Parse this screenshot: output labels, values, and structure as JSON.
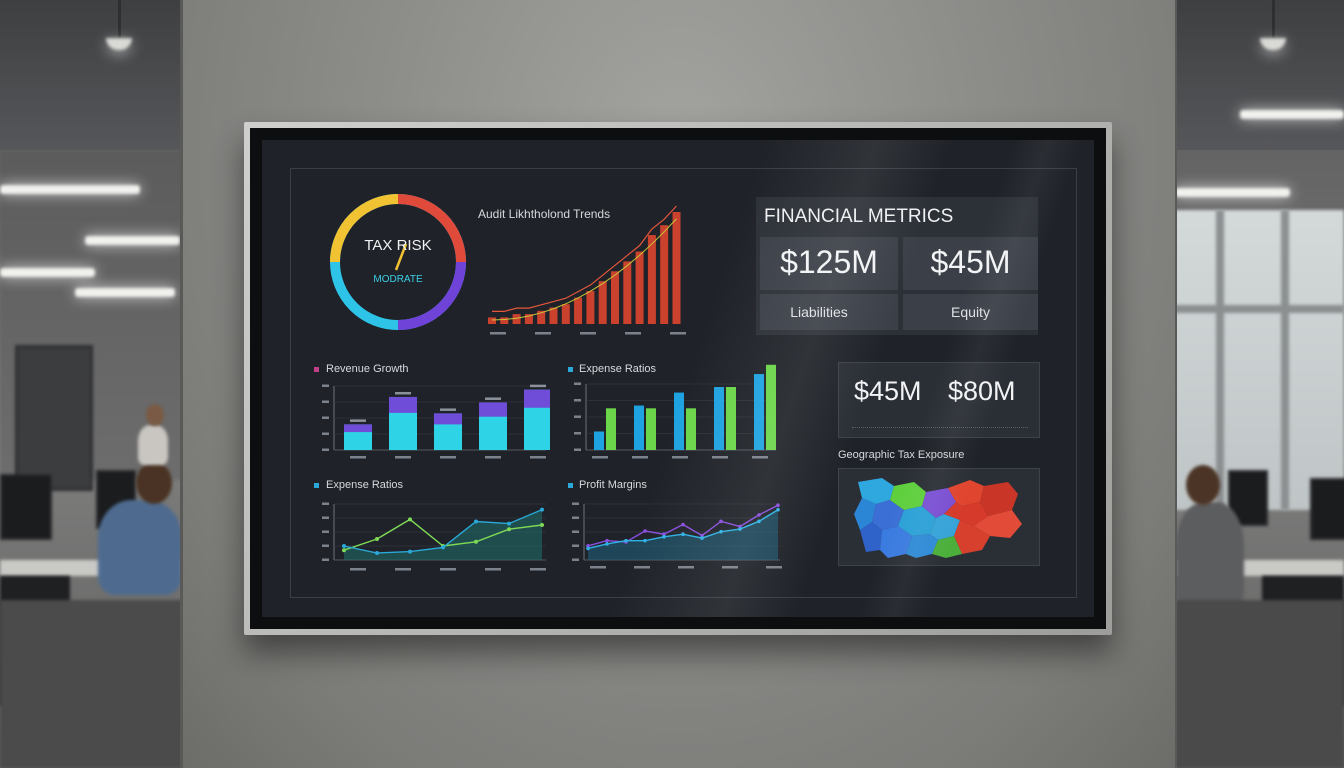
{
  "gauge": {
    "title": "TAX RISK",
    "level": "MODRATE",
    "colors": [
      "#f1c232",
      "#e04a3a",
      "#6f42d8",
      "#2ec4e8"
    ]
  },
  "audit_trend": {
    "title": "Audit Likhtholond Trends",
    "chart_data": {
      "type": "bar",
      "values": [
        2,
        2,
        3,
        3,
        4,
        5,
        6,
        8,
        10,
        13,
        16,
        19,
        22,
        27,
        30,
        34
      ],
      "overlay": "line",
      "color": "#d9442e"
    }
  },
  "financial_metrics": {
    "title": "FINANCIAL METRICS",
    "value_1": "$125M",
    "value_2": "$45M",
    "label_1": "Liabilities",
    "label_2": "Equity"
  },
  "secondary_metrics": {
    "value_1": "$45M",
    "value_2": "$80M"
  },
  "revenue_growth": {
    "title": "Revenue Growth",
    "chart_data": {
      "type": "bar",
      "values": [
        28,
        58,
        40,
        52,
        66
      ],
      "colors": [
        "#2fd3e6",
        "#6f4dd8"
      ]
    }
  },
  "expense_ratios_bar": {
    "title": "Expense Ratios",
    "chart_data": {
      "type": "bar",
      "series": [
        {
          "color": "#1fa3e0",
          "values": [
            20,
            48,
            62,
            68,
            82
          ]
        },
        {
          "color": "#6cd64a",
          "values": [
            45,
            45,
            45,
            68,
            92
          ]
        }
      ]
    }
  },
  "expense_ratios_line": {
    "title": "Expense Ratios",
    "chart_data": {
      "type": "line",
      "series": [
        {
          "color": "#7ed957",
          "values": [
            14,
            30,
            58,
            20,
            26,
            44,
            50
          ]
        },
        {
          "color": "#2aa8d8",
          "values": [
            20,
            10,
            12,
            18,
            55,
            52,
            72
          ]
        }
      ]
    }
  },
  "profit_margins": {
    "title": "Profit Margins",
    "chart_data": {
      "type": "line",
      "series": [
        {
          "color": "#8a4fe0",
          "values": [
            22,
            30,
            28,
            45,
            40,
            55,
            38,
            60,
            52,
            70,
            85
          ]
        },
        {
          "color": "#2fb2e6",
          "values": [
            18,
            25,
            30,
            30,
            36,
            40,
            34,
            44,
            48,
            60,
            78
          ]
        }
      ]
    }
  },
  "geo": {
    "title": "Geographic Tax Exposure"
  }
}
